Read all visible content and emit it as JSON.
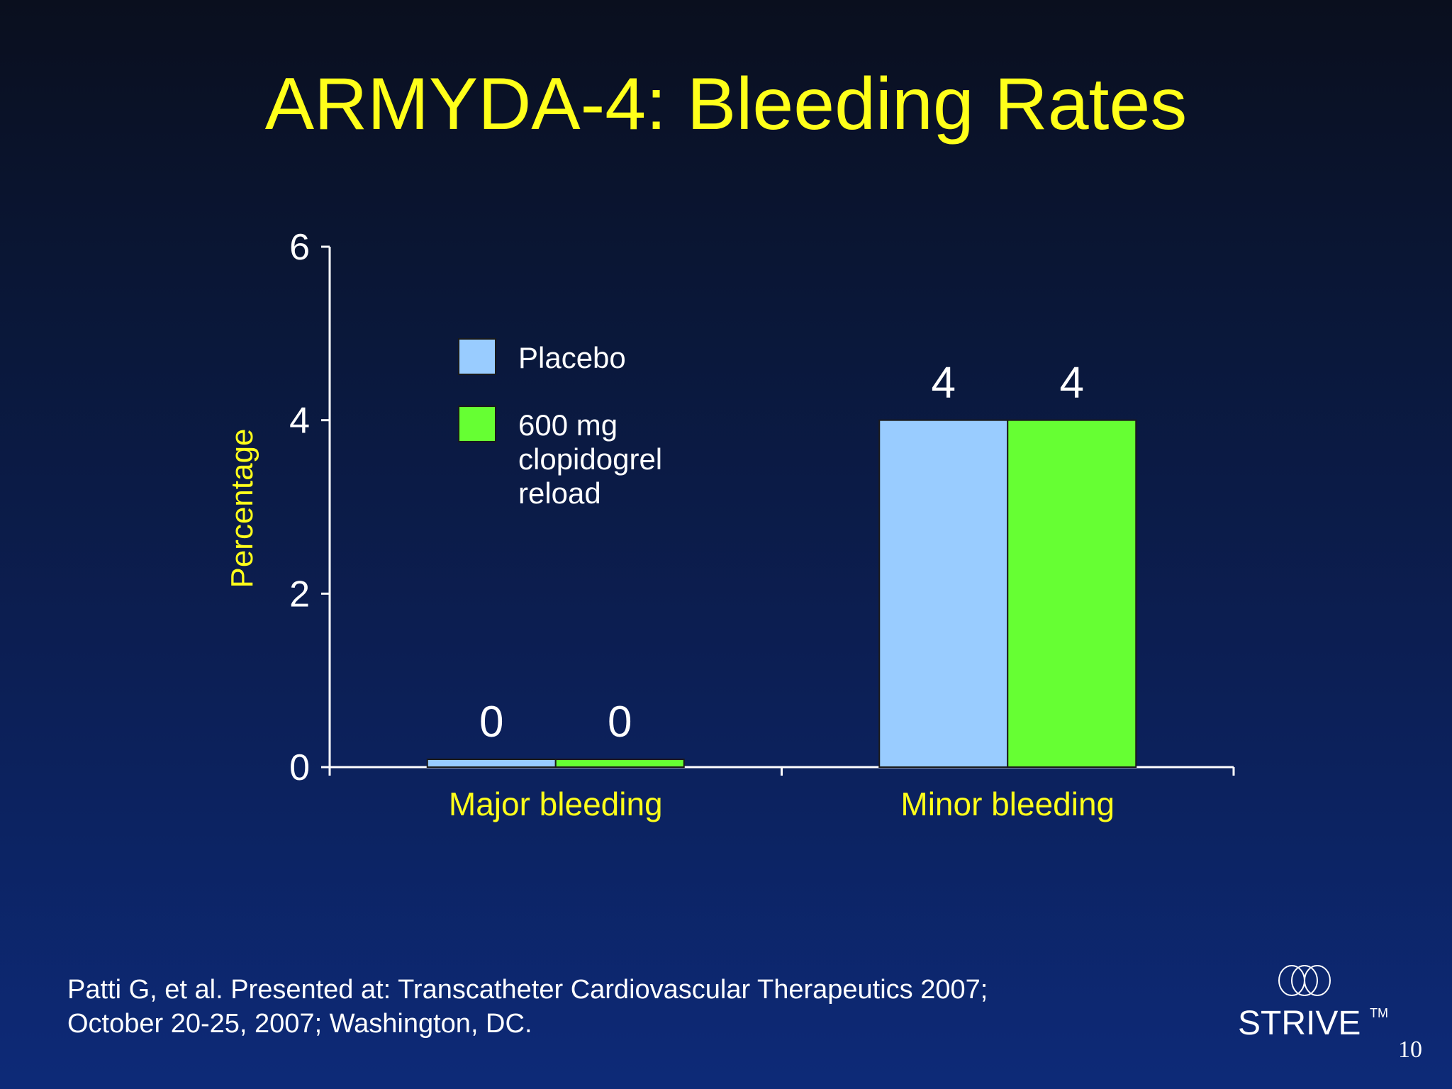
{
  "slide": {
    "title": "ARMYDA-4: Bleeding Rates",
    "footnote_line1": "Patti G, et al. Presented at: Transcatheter Cardiovascular Therapeutics 2007;",
    "footnote_line2": "October 20-25, 2007; Washington, DC.",
    "logo_text": "STRIVE",
    "logo_tm": "TM",
    "page_number": "10"
  },
  "colors": {
    "title": "#ffff1a",
    "axis_label": "#ffff1a",
    "placebo": "#99ccff",
    "clopidogrel": "#66ff33",
    "axis": "#ffffff"
  },
  "chart_data": {
    "type": "bar",
    "title": "",
    "xlabel": "",
    "ylabel": "Percentage",
    "categories": [
      "Major bleeding",
      "Minor bleeding"
    ],
    "series": [
      {
        "name": "Placebo",
        "values": [
          0,
          4
        ],
        "labels": [
          "0",
          "4"
        ],
        "color": "#99ccff"
      },
      {
        "name": "600 mg clopidogrel reload",
        "legend_lines": [
          "600 mg",
          "clopidogrel",
          "reload"
        ],
        "values": [
          0,
          4
        ],
        "labels": [
          "0",
          "4"
        ],
        "color": "#66ff33"
      }
    ],
    "ylim": [
      0,
      6
    ],
    "yticks": [
      "0",
      "2",
      "4",
      "6"
    ],
    "grid": false,
    "legend_position": "inside-top-left"
  }
}
